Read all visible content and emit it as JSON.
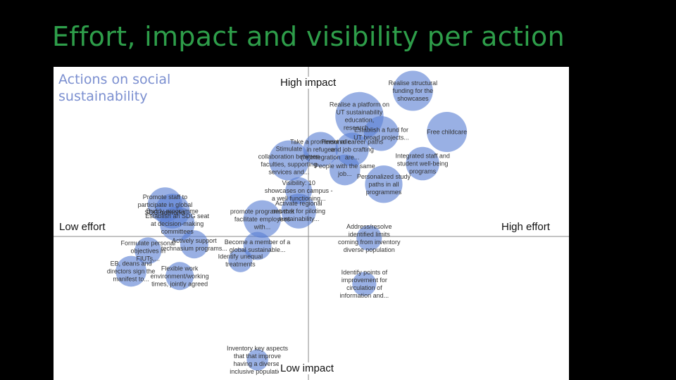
{
  "slide_title": "Effort, impact and visibility per action",
  "chart_data": {
    "type": "scatter",
    "title": "Actions on social\nsustainability",
    "quadrant_labels": {
      "top": "High impact",
      "bottom": "Low impact",
      "left": "Low effort",
      "right": "High effort"
    },
    "xlabel": "",
    "ylabel": "",
    "xlim": [
      -10,
      10
    ],
    "ylim": [
      -10,
      10
    ],
    "grid": false,
    "bubble_color": "#5b7fd4",
    "points": [
      {
        "label": "Realise structural funding for the showcases",
        "x": 4.3,
        "y": 9.2,
        "size": 3.0
      },
      {
        "label": "Realise a platform on UT sustainability education, research,...",
        "x": 2.1,
        "y": 7.6,
        "size": 3.6
      },
      {
        "label": "Free childcare",
        "x": 5.7,
        "y": 6.6,
        "size": 3.0
      },
      {
        "label": "Establish a fund for UT broad projects...",
        "x": 3.0,
        "y": 6.5,
        "size": 2.6
      },
      {
        "label": "Take a prominent role in refugee (re)integration",
        "x": 0.5,
        "y": 5.5,
        "size": 2.6
      },
      {
        "label": "Personal career paths and job crafting are...",
        "x": 1.8,
        "y": 5.5,
        "size": 2.5
      },
      {
        "label": "Stimulate collaboration between faculties, supporting services and...",
        "x": -0.8,
        "y": 4.8,
        "size": 3.0
      },
      {
        "label": "People with the same job...",
        "x": 1.5,
        "y": 4.2,
        "size": 2.3
      },
      {
        "label": "Integrated staff and student well-being programs",
        "x": 4.7,
        "y": 4.6,
        "size": 2.5
      },
      {
        "label": "Personalized study paths in all programmes",
        "x": 3.1,
        "y": 3.3,
        "size": 2.8
      },
      {
        "label": "Visibility: 10 showcases on campus - a well functioning...",
        "x": -0.4,
        "y": 2.9,
        "size": 2.0
      },
      {
        "label": "Promote staff to participate in global SDG networks",
        "x": -5.9,
        "y": 2.0,
        "size": 2.6
      },
      {
        "label": "Buddy programme",
        "x": -5.6,
        "y": 1.6,
        "size": 2.6
      },
      {
        "label": "promote programs that facilitate employees with...",
        "x": -1.9,
        "y": 1.1,
        "size": 2.8
      },
      {
        "label": "Activate regional network for piloting sustainability...",
        "x": -0.4,
        "y": 1.6,
        "size": 2.6
      },
      {
        "label": "Establish an SDG seat at decision-making committees",
        "x": -5.4,
        "y": 0.8,
        "size": 2.6
      },
      {
        "label": "Address/resolve identified limits coming from inventory diverse population",
        "x": 2.5,
        "y": -0.1,
        "size": 1.9
      },
      {
        "label": "Actively support technasium programs...",
        "x": -4.7,
        "y": -0.5,
        "size": 2.1
      },
      {
        "label": "Become a member of a global sustainable...",
        "x": -2.1,
        "y": -0.6,
        "size": 2.1
      },
      {
        "label": "Formulate personal objectives in FIUTs,...",
        "x": -6.6,
        "y": -0.9,
        "size": 2.0
      },
      {
        "label": "Identify unequal treatments",
        "x": -2.8,
        "y": -1.5,
        "size": 1.8
      },
      {
        "label": "EB, deans and directors sign the manifest to...",
        "x": -7.3,
        "y": -2.2,
        "size": 2.3
      },
      {
        "label": "Flexible work environment/working times, jointly agreed",
        "x": -5.3,
        "y": -2.5,
        "size": 2.1
      },
      {
        "label": "Identify points of improvement for circulation of information and...",
        "x": 2.3,
        "y": -3.0,
        "size": 1.8
      },
      {
        "label": "Inventory key aspects that that improve having a diverse, inclusive population",
        "x": -2.1,
        "y": -7.8,
        "size": 1.6
      }
    ]
  }
}
